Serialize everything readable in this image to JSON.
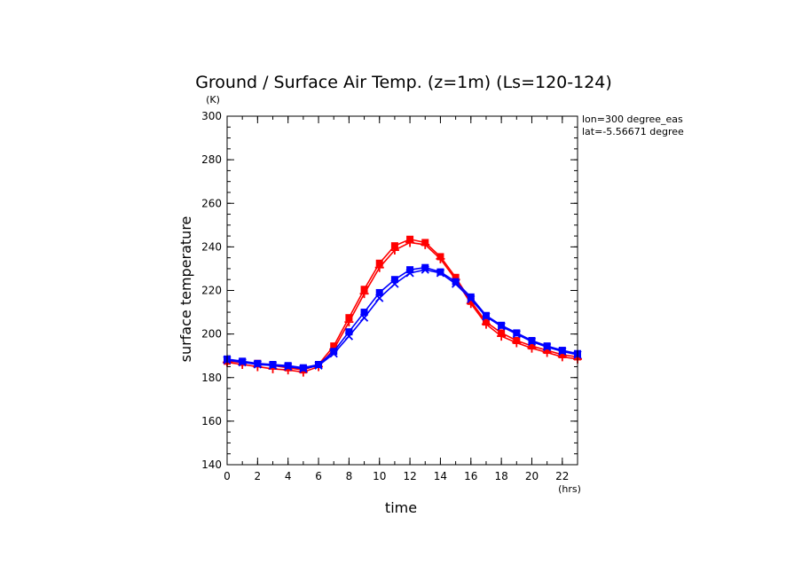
{
  "chart_data": {
    "type": "line",
    "title": "Ground / Surface Air Temp. (z=1m) (Ls=120-124)",
    "xlabel": "time",
    "ylabel": "surface temperature",
    "x_unit": "(hrs)",
    "y_unit": "(K)",
    "xlim": [
      0,
      23
    ],
    "ylim": [
      140,
      300
    ],
    "x_ticks": [
      "0",
      "2",
      "4",
      "6",
      "8",
      "10",
      "12",
      "14",
      "16",
      "18",
      "20",
      "22"
    ],
    "y_ticks": [
      "140",
      "160",
      "180",
      "200",
      "220",
      "240",
      "260",
      "280",
      "300"
    ],
    "grid": false,
    "annotations": [
      "lon=300 degree_eas",
      "lat=-5.56671 degree"
    ],
    "x": [
      0,
      1,
      2,
      3,
      4,
      5,
      6,
      7,
      8,
      9,
      10,
      11,
      12,
      13,
      14,
      15,
      16,
      17,
      18,
      19,
      20,
      21,
      22,
      23
    ],
    "series": [
      {
        "color": "#ff0000",
        "marker": "filled-square",
        "values": [
          187.5,
          187,
          186.5,
          185.5,
          184.5,
          183.5,
          186,
          194.5,
          207.5,
          220.5,
          232.5,
          240.5,
          243.5,
          242,
          235.5,
          226,
          215,
          205.5,
          200.5,
          197,
          194.5,
          192.5,
          190.5,
          189.5
        ]
      },
      {
        "color": "#ff0000",
        "marker": "plus",
        "values": [
          187,
          186,
          185,
          184,
          183.5,
          182.5,
          185,
          193,
          205.5,
          218.5,
          230.5,
          238.5,
          242,
          241,
          234.5,
          225,
          214,
          204.5,
          199,
          196,
          193.5,
          191.5,
          189.5,
          188.5
        ]
      },
      {
        "color": "#0000ff",
        "marker": "filled-square",
        "values": [
          188.5,
          187.5,
          186.5,
          186,
          185.5,
          184.5,
          186,
          192,
          201,
          210,
          219,
          225,
          229.5,
          230.5,
          228.5,
          224,
          217,
          208.5,
          204,
          200.5,
          197,
          194.5,
          192.5,
          191
        ]
      },
      {
        "color": "#0000ff",
        "marker": "x",
        "values": [
          188,
          187,
          186,
          185.5,
          185,
          184,
          185.5,
          191,
          199,
          207.5,
          216.5,
          223,
          228,
          229.5,
          228,
          223,
          216,
          208,
          203.5,
          200,
          196.5,
          194,
          192,
          190.5
        ]
      }
    ]
  }
}
